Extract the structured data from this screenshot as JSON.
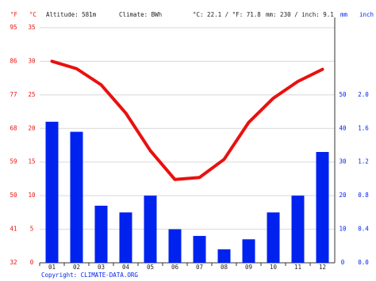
{
  "chart_data": {
    "type": "combo",
    "header": {
      "f_unit": "°F",
      "c_unit": "°C",
      "altitude": "Altitude: 581m",
      "climate": "Climate: BWh",
      "temp_avg": "°C: 22.1 / °F: 71.8",
      "precip_total": "mm: 230 / inch: 9.1",
      "mm_unit": "mm",
      "inch_unit": "inch"
    },
    "footer": "Copyright: CLIMATE-DATA.ORG",
    "categories": [
      "01",
      "02",
      "03",
      "04",
      "05",
      "06",
      "07",
      "08",
      "09",
      "10",
      "11",
      "12"
    ],
    "series": [
      {
        "type": "bar",
        "axis": "y2",
        "color": "#0022ee",
        "values": [
          42,
          39,
          17,
          15,
          20,
          10,
          8,
          4,
          7,
          15,
          20,
          33
        ]
      },
      {
        "type": "line",
        "axis": "y",
        "color": "#e8110f",
        "values": [
          30.0,
          28.9,
          26.5,
          22.3,
          16.7,
          12.4,
          12.7,
          15.4,
          20.9,
          24.5,
          27.0,
          28.8
        ]
      }
    ],
    "ylim": [
      0,
      35
    ],
    "yticks": [
      0,
      5,
      10,
      15,
      20,
      25,
      30,
      35
    ],
    "flim": [
      32,
      95
    ],
    "fticks": [
      32,
      41,
      50,
      59,
      68,
      77,
      86,
      95
    ],
    "y2lim": [
      0,
      70
    ],
    "y2ticks": [
      0,
      10,
      20,
      30,
      40,
      50
    ],
    "inchlim": [
      0,
      2.8
    ],
    "inchticks": [
      {
        "value": 0,
        "label": "0.0"
      },
      {
        "value": 0.4,
        "label": "0.4"
      },
      {
        "value": 0.8,
        "label": "0.8"
      },
      {
        "value": 1.2,
        "label": "1.2"
      },
      {
        "value": 1.6,
        "label": "1.6"
      },
      {
        "value": 2.0,
        "label": "2.0"
      }
    ],
    "grid": true,
    "left_color": "#e8110f",
    "right_color": "#0022ee"
  }
}
